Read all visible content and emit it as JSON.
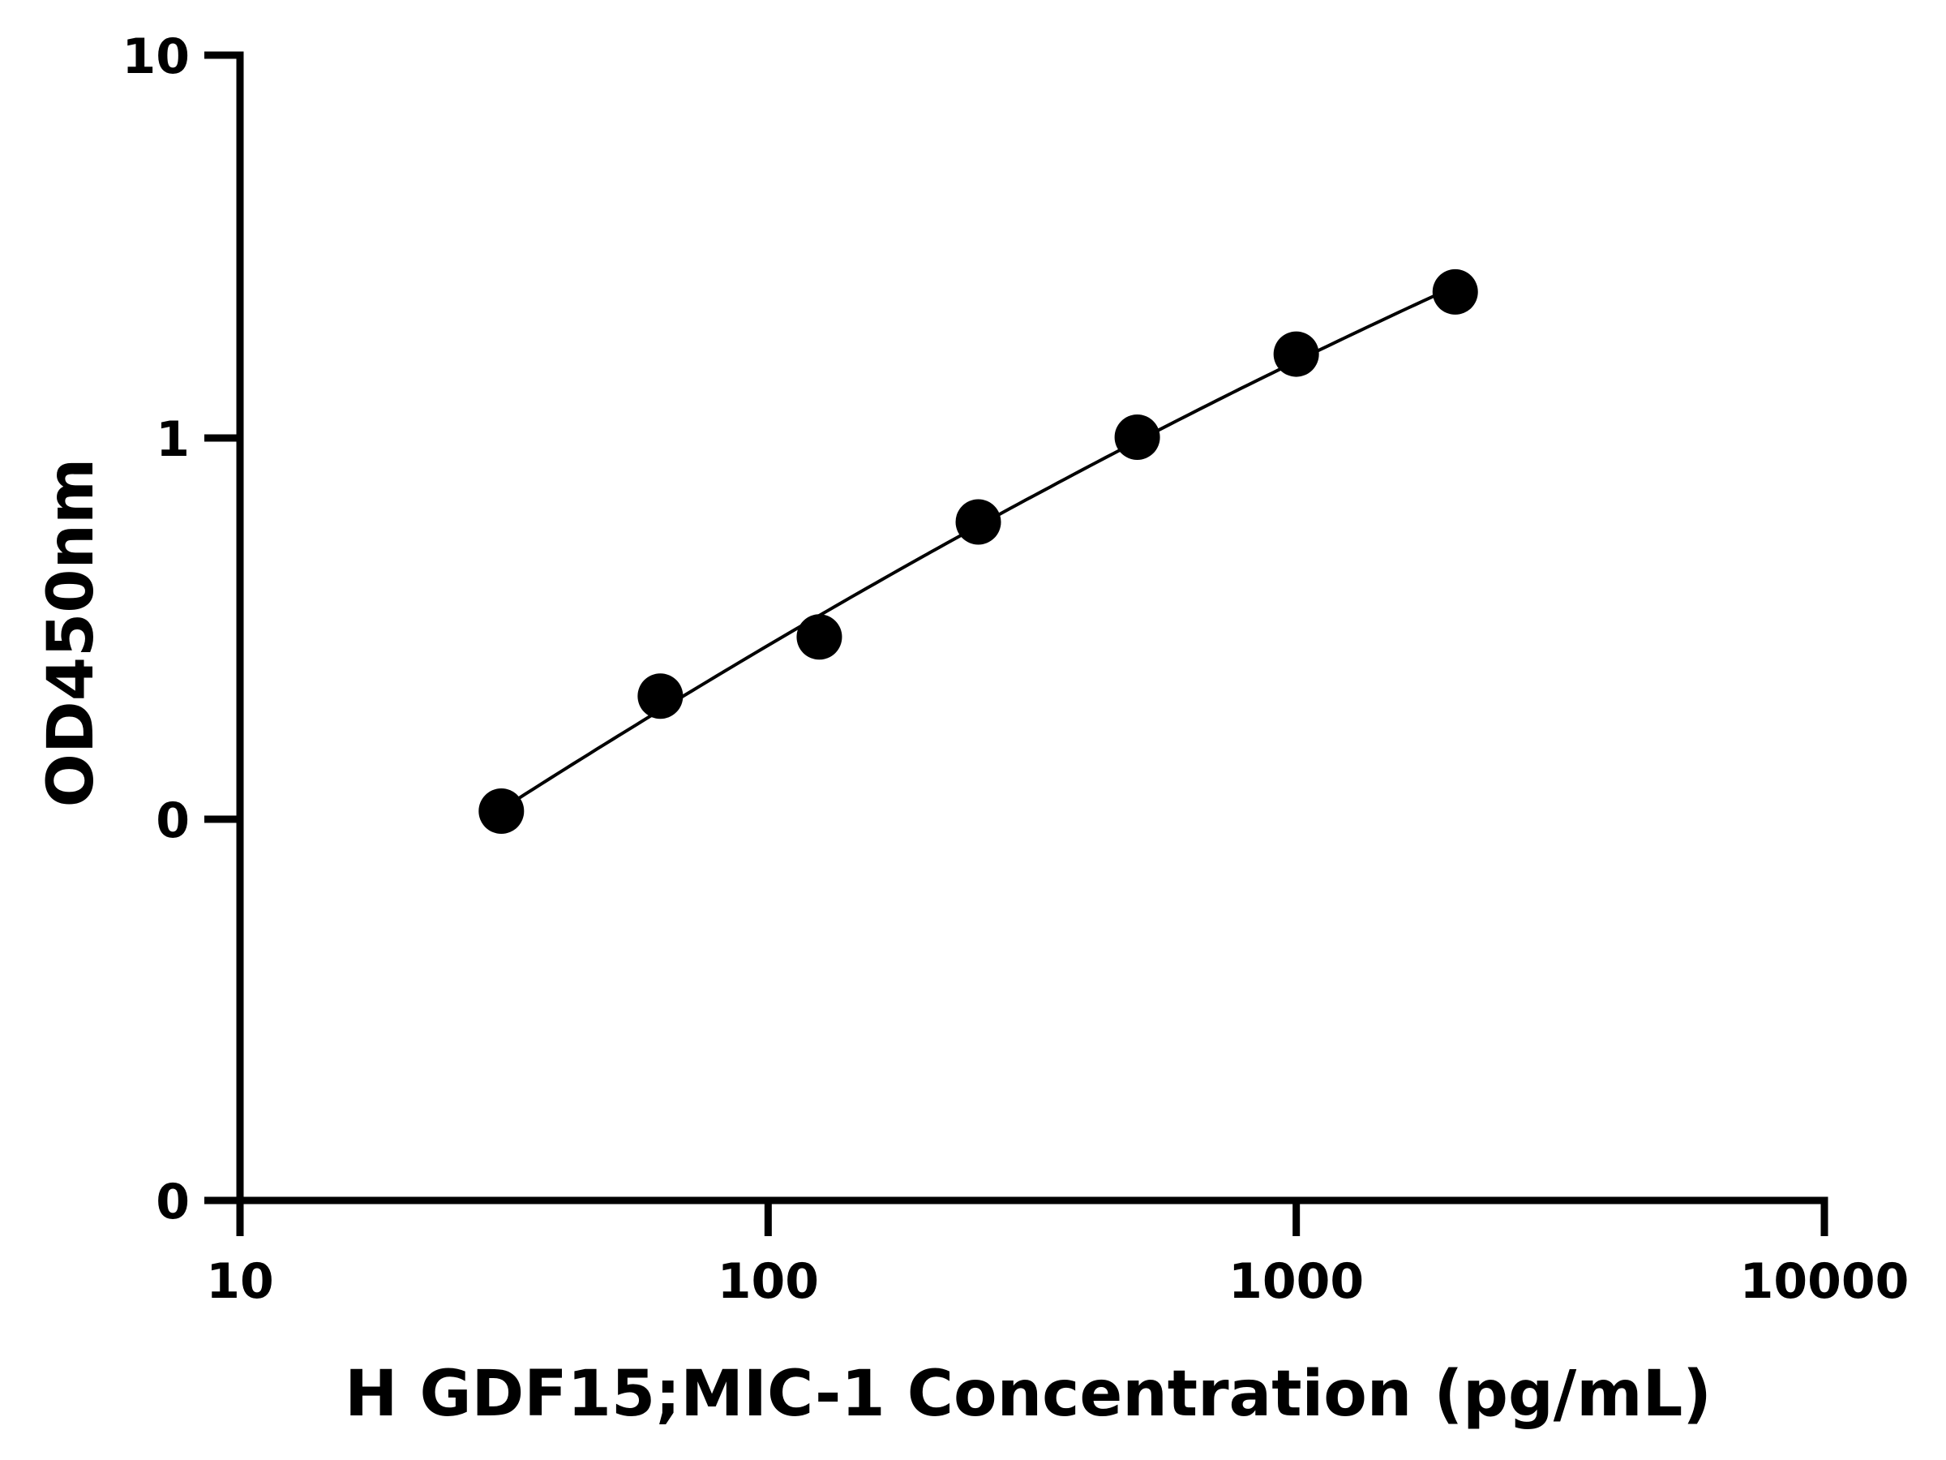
{
  "chart_data": {
    "type": "scatter",
    "xlabel": "H GDF15;MIC-1 Concentration (pg/mL)",
    "ylabel": "OD450nm",
    "x_scale": "log10",
    "y_scale": "log10",
    "xlim": [
      10,
      10000
    ],
    "ylim": [
      0.1,
      10
    ],
    "x_ticks": [
      10,
      100,
      1000,
      10000
    ],
    "x_tick_labels": [
      "10",
      "100",
      "1000",
      "10000"
    ],
    "y_ticks": [
      0.01,
      0.1,
      1,
      10
    ],
    "y_tick_labels": [
      "0",
      "0",
      "1",
      "10"
    ],
    "grid": false,
    "series": [
      {
        "marker": "circle",
        "line": "fitted-curve",
        "color": "#000000",
        "x": [
          31.25,
          62.5,
          125,
          250,
          500,
          1000,
          2000
        ],
        "y": [
          0.105,
          0.21,
          0.3,
          0.6,
          1.0,
          1.65,
          2.4
        ]
      }
    ]
  }
}
